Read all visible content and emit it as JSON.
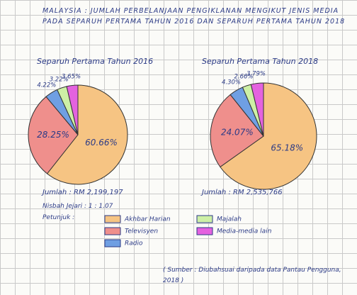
{
  "title": "MALAYSIA : JUMLAH PERBELANJAAN PENGIKLANAN MENGIKUT JENIS MEDIA PADA SEPARUH PERTAMA TAHUN 2016 DAN SEPARUH PERTAMA TAHUN 2018",
  "legend": {
    "title": "Petunjuk :",
    "entries": [
      "Akhbar Harian",
      "Televisyen",
      "Radio",
      "Majalah",
      "Media-media lain"
    ],
    "colors": [
      "#f6c483",
      "#ef8f8c",
      "#6f9fe3",
      "#cdf0a6",
      "#e462df"
    ]
  },
  "ratio": "Nisbah Jejari : 1 : 1.07",
  "source": "( Sumber : Diubahsuai daripada data Pantau Pengguna, 2018 )",
  "chart_data": [
    {
      "type": "pie",
      "subtitle": "Separuh Pertama Tahun 2016",
      "total": "Jumlah : RM 2,199,197",
      "values": [
        60.66,
        28.25,
        4.22,
        3.22,
        3.65
      ],
      "value_labels": [
        "60.66%",
        "28.25%",
        "4.22%",
        "3.22%",
        "3.65%"
      ]
    },
    {
      "type": "pie",
      "subtitle": "Separuh Pertama Tahun 2018",
      "total": "Jumlah : RM 2,535,766",
      "values": [
        65.18,
        24.07,
        4.3,
        2.66,
        3.79
      ],
      "value_labels": [
        "65.18%",
        "24.07%",
        "4.30%",
        "2.66%",
        "3.79%"
      ]
    }
  ]
}
